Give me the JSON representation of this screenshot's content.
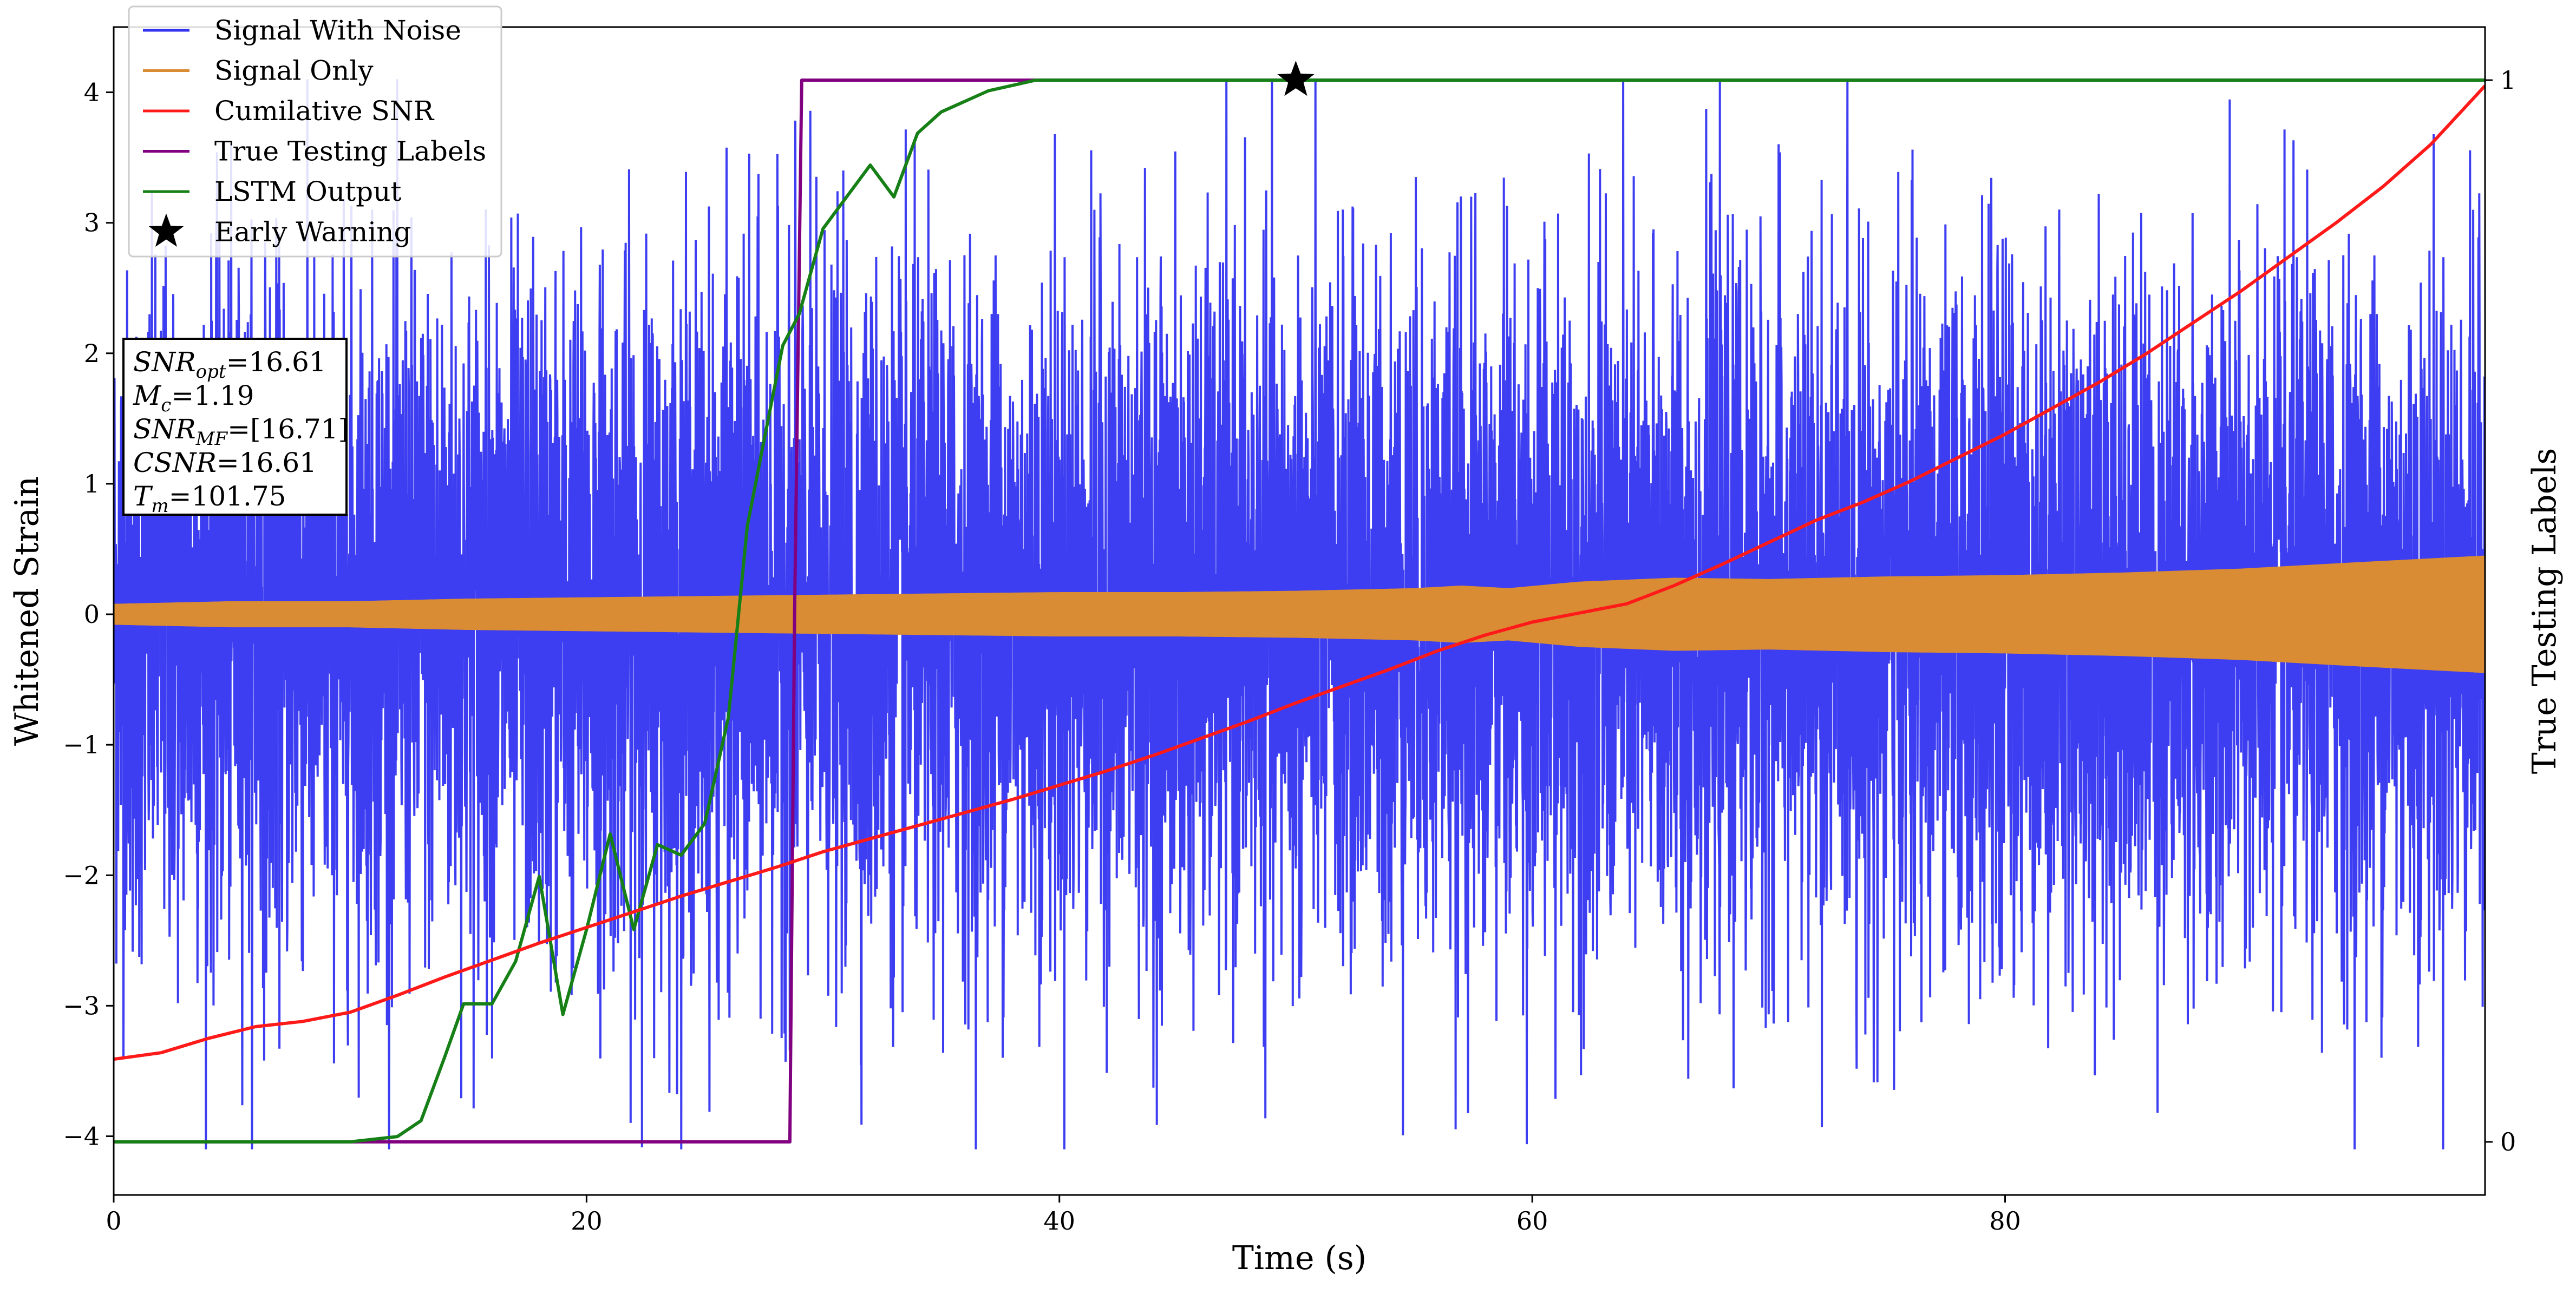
{
  "chart_data": {
    "type": "line",
    "title": "",
    "xlabel": "Time (s)",
    "ylabel": "Whitened Strain",
    "y2label": "True Testing Labels",
    "xlim": [
      0,
      100.3
    ],
    "ylim": [
      -4.45,
      4.5
    ],
    "y2lim": [
      -0.05,
      1.05
    ],
    "x_ticks": [
      0,
      20,
      40,
      60,
      80
    ],
    "x_tick_labels": [
      "0",
      "20",
      "40",
      "60",
      "80"
    ],
    "y_ticks": [
      -4,
      -3,
      -2,
      -1,
      0,
      1,
      2,
      3,
      4
    ],
    "y_tick_labels": [
      "−4",
      "−3",
      "−2",
      "−1",
      "0",
      "1",
      "2",
      "3",
      "4"
    ],
    "y2_ticks": [
      0,
      1
    ],
    "y2_tick_labels": [
      "0",
      "1"
    ],
    "grid": false,
    "legend_position": "top-left",
    "colors": {
      "signal_with_noise": "#3333f0",
      "signal_only": "#d98c33",
      "cumulative_snr": "#ff1a1a",
      "true_labels": "#800080",
      "lstm_output": "#168016",
      "early_warning": "#000000"
    },
    "series": [
      {
        "name": "Signal With Noise",
        "axis": "left",
        "kind": "noise-trace",
        "envelope_typical": 1.3,
        "envelope_peak": 4.1,
        "x_range": [
          0,
          100.3
        ]
      },
      {
        "name": "Signal Only",
        "axis": "left",
        "kind": "chirp-band",
        "x": [
          0,
          5,
          10,
          15,
          20,
          25,
          30,
          35,
          40,
          45,
          50,
          55,
          57,
          59,
          62,
          66,
          70,
          75,
          80,
          85,
          90,
          95,
          100.3
        ],
        "amplitude": [
          0.08,
          0.1,
          0.1,
          0.12,
          0.13,
          0.14,
          0.15,
          0.16,
          0.17,
          0.17,
          0.18,
          0.2,
          0.22,
          0.2,
          0.25,
          0.28,
          0.27,
          0.29,
          0.3,
          0.32,
          0.35,
          0.4,
          0.45
        ]
      },
      {
        "name": "Cumilative SNR",
        "axis": "left",
        "x": [
          0,
          2,
          4,
          6,
          8,
          10,
          12,
          14,
          16,
          18,
          20,
          22,
          24,
          26,
          28,
          30,
          32,
          34,
          36,
          38,
          40,
          42,
          44,
          46,
          48,
          50,
          52,
          54,
          56,
          58,
          60,
          62,
          64,
          66,
          68,
          70,
          72,
          74,
          76,
          78,
          80,
          82,
          84,
          86,
          88,
          90,
          92,
          94,
          96,
          98,
          100.3
        ],
        "y": [
          -3.41,
          -3.36,
          -3.25,
          -3.16,
          -3.12,
          -3.05,
          -2.92,
          -2.78,
          -2.65,
          -2.52,
          -2.4,
          -2.28,
          -2.16,
          -2.05,
          -1.94,
          -1.82,
          -1.72,
          -1.62,
          -1.52,
          -1.42,
          -1.31,
          -1.2,
          -1.08,
          -0.95,
          -0.82,
          -0.68,
          -0.55,
          -0.42,
          -0.28,
          -0.16,
          -0.06,
          0.01,
          0.08,
          0.22,
          0.38,
          0.55,
          0.72,
          0.86,
          1.02,
          1.2,
          1.38,
          1.58,
          1.78,
          2.0,
          2.24,
          2.48,
          2.74,
          3.0,
          3.28,
          3.6,
          4.05
        ]
      },
      {
        "name": "True Testing Labels",
        "axis": "right",
        "x": [
          0,
          28.6,
          28.8,
          29.1,
          100.3
        ],
        "y": [
          0,
          0,
          0.5,
          1,
          1
        ]
      },
      {
        "name": "LSTM Output",
        "axis": "right",
        "x": [
          0,
          10,
          12,
          13,
          14,
          14.8,
          16,
          17,
          18,
          19,
          20,
          21,
          22,
          23,
          24,
          25,
          26,
          26.8,
          27.5,
          28.3,
          29,
          30,
          31,
          32,
          33,
          34,
          35,
          36,
          37,
          38,
          39,
          40,
          42,
          44,
          46,
          50,
          60,
          80,
          100.3
        ],
        "y": [
          0,
          0,
          0.005,
          0.02,
          0.08,
          0.13,
          0.13,
          0.17,
          0.25,
          0.12,
          0.2,
          0.29,
          0.2,
          0.28,
          0.27,
          0.3,
          0.4,
          0.58,
          0.66,
          0.75,
          0.78,
          0.86,
          0.89,
          0.92,
          0.89,
          0.95,
          0.97,
          0.98,
          0.99,
          0.995,
          1.0,
          1.0,
          1.0,
          1.0,
          1.0,
          1.0,
          1.0,
          1.0,
          1.0
        ]
      }
    ],
    "early_warning": {
      "name": "Early Warning",
      "x": 50,
      "y": 1.0,
      "axis": "right"
    },
    "annotation_box": [
      {
        "label_main": "SNR",
        "label_sub": "opt",
        "value": "=16.61"
      },
      {
        "label_main": "M",
        "label_sub": "c",
        "value": "=1.19"
      },
      {
        "label_main": "SNR",
        "label_sub": "MF",
        "value": "=[16.71]"
      },
      {
        "label_main": "CSNR",
        "label_sub": "",
        "value": "=16.61"
      },
      {
        "label_main": "T",
        "label_sub": "m",
        "value": "=101.75"
      }
    ]
  }
}
